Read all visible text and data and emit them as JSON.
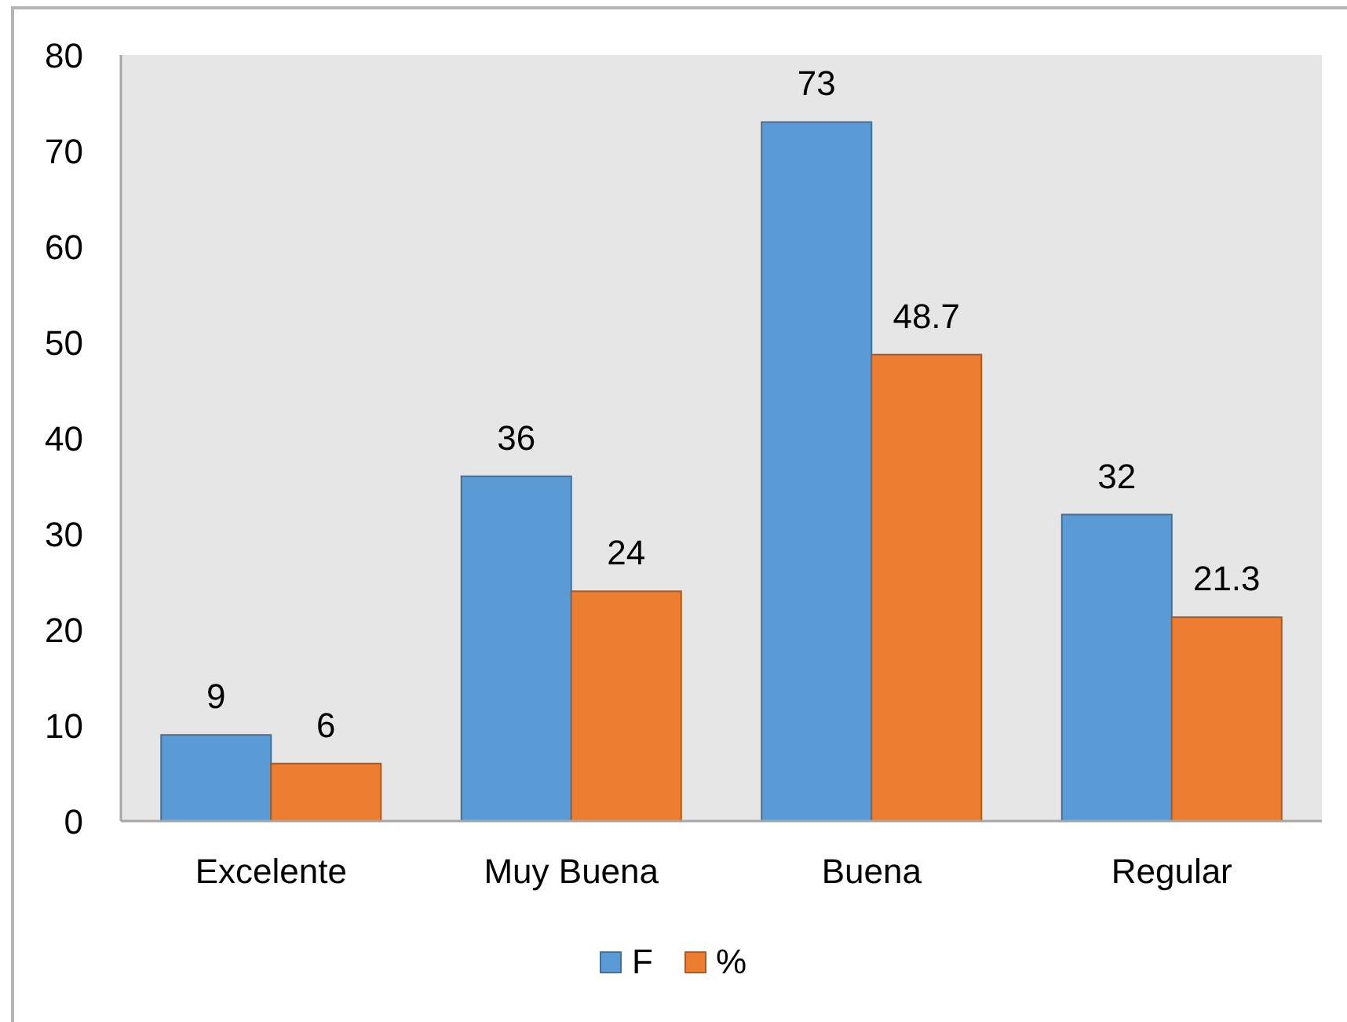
{
  "chart_data": {
    "type": "bar",
    "categories": [
      "Excelente",
      "Muy Buena",
      "Buena",
      "Regular"
    ],
    "series": [
      {
        "name": "F",
        "color": "#5b9bd5",
        "values": [
          9,
          36,
          73,
          32
        ]
      },
      {
        "name": "%",
        "color": "#ed7d31",
        "values": [
          6,
          24,
          48.7,
          21.3
        ]
      }
    ],
    "ylim": [
      0,
      80
    ],
    "yticks": [
      0,
      10,
      20,
      30,
      40,
      50,
      60,
      70,
      80
    ],
    "data_labels": true,
    "legend": "bottom"
  }
}
